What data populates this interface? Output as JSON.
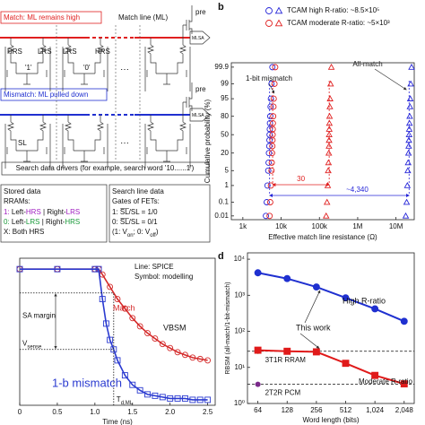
{
  "diagram": {
    "top_status": "Match: ML remains high",
    "ml_label": "Match line (ML)",
    "pre": [
      "pre",
      "pre"
    ],
    "mlsa": [
      "MLSA",
      "MLSA"
    ],
    "cells": [
      {
        "left": "HRS",
        "right": "LRS",
        "bit": "'1'"
      },
      {
        "left": "LRS",
        "right": "HRS",
        "bit": "'0'"
      }
    ],
    "bottom_status": "Mismatch: ML pulled down",
    "sl": "SL",
    "drivers": "Search data drivers (for example, search word '10......1')",
    "legend_left": {
      "title": "Stored data",
      "subtitle": "RRAMs:",
      "lines": [
        {
          "parts": [
            {
              "text": "1:",
              "color": "#a020c0"
            },
            {
              "text": " Left-"
            },
            {
              "text": "HRS",
              "color": "#a020c0"
            },
            {
              "text": " | Right-"
            },
            {
              "text": "LRS",
              "color": "#a020c0"
            }
          ]
        },
        {
          "parts": [
            {
              "text": "0:",
              "color": "#1a9a3a"
            },
            {
              "text": " Left-"
            },
            {
              "text": "LRS",
              "color": "#1a9a3a"
            },
            {
              "text": " | Right-"
            },
            {
              "text": "HRS",
              "color": "#1a9a3a"
            }
          ]
        },
        {
          "parts": [
            {
              "text": "X: Both HRS"
            }
          ]
        }
      ]
    },
    "legend_right": {
      "title": "Search line data",
      "subtitle": "Gates of FETs:",
      "lines": [
        {
          "parts": [
            {
              "text": "1: S̅L̅/SL = 1/0"
            }
          ]
        },
        {
          "parts": [
            {
              "text": "0: S̅L̅/SL = 0/1"
            }
          ]
        },
        {
          "parts": [
            {
              "text": "(1: V"
            },
            {
              "text": "on",
              "sub": true
            },
            {
              "text": "; 0: V"
            },
            {
              "text": "off",
              "sub": true
            },
            {
              "text": ")"
            }
          ]
        }
      ]
    }
  },
  "chart_data": [
    {
      "panel": "b",
      "type": "scatter",
      "xlabel": "Effective match line resistance (Ω)",
      "ylabel": "Cumulative probability (%)",
      "xscale": "log",
      "yscale": "probability",
      "xlim": [
        500,
        30000000
      ],
      "ylim": [
        0.005,
        99.95
      ],
      "xticks": [
        {
          "value": 1000,
          "label": "1k"
        },
        {
          "value": 10000,
          "label": "10k"
        },
        {
          "value": 100000,
          "label": "100k"
        },
        {
          "value": 1000000,
          "label": "1M"
        },
        {
          "value": 10000000,
          "label": "10M"
        }
      ],
      "yticks": [
        0.01,
        0.1,
        1,
        5,
        20,
        50,
        80,
        95,
        99,
        99.9
      ],
      "legend": "top",
      "group_labels": [
        "1-bit mismatch",
        "All-match"
      ],
      "series": [
        {
          "name": "TCAM high R-ratio: ~8.5×10⁵",
          "color": "#2626d8",
          "ratio_label": "~4,340",
          "groups": [
            {
              "marker": "circle",
              "x": [
                4000,
                4200,
                4400,
                4600,
                4700,
                4800,
                4900,
                4950,
                5000,
                5050,
                5100,
                5200,
                5300,
                5400,
                5600,
                5900
              ],
              "y": [
                0.01,
                0.1,
                1,
                5,
                10,
                20,
                30,
                40,
                50,
                60,
                70,
                80,
                90,
                95,
                99,
                99.9
              ]
            },
            {
              "marker": "triangle",
              "x": [
                18000000,
                19000000,
                19800000,
                20400000,
                20800000,
                21200000,
                21500000,
                21700000,
                22000000,
                22200000,
                22500000,
                22800000,
                23200000,
                23600000,
                24300000,
                25500000
              ],
              "y": [
                0.01,
                0.1,
                1,
                5,
                10,
                20,
                30,
                40,
                50,
                60,
                70,
                80,
                90,
                95,
                99,
                99.9
              ]
            }
          ]
        },
        {
          "name": "TCAM moderate R-ratio: ~5×10³",
          "color": "#e02020",
          "ratio_label": "30",
          "groups": [
            {
              "marker": "circle",
              "x": [
                5000,
                5200,
                5400,
                5600,
                5700,
                5800,
                5900,
                5950,
                6000,
                6050,
                6100,
                6200,
                6300,
                6400,
                6700,
                7000
              ],
              "y": [
                0.01,
                0.1,
                1,
                5,
                10,
                20,
                30,
                40,
                50,
                60,
                70,
                80,
                90,
                95,
                99,
                99.9
              ]
            },
            {
              "marker": "triangle",
              "x": [
                150000,
                158000,
                165000,
                170000,
                173000,
                176000,
                178000,
                179000,
                180000,
                181000,
                182000,
                184000,
                187000,
                190000,
                196000,
                205000
              ],
              "y": [
                0.01,
                0.1,
                1,
                5,
                10,
                20,
                30,
                40,
                50,
                60,
                70,
                80,
                90,
                95,
                99,
                99.9
              ]
            }
          ]
        }
      ]
    },
    {
      "panel": "c",
      "type": "line",
      "xlabel": "Time (ns)",
      "xlim": [
        0,
        2.6
      ],
      "ylim": [
        0,
        1.08
      ],
      "xticks": [
        0,
        0.5,
        {
          "value": 1,
          "label": "1.0"
        },
        1.5,
        {
          "value": 2,
          "label": "2.0"
        },
        2.5
      ],
      "notes": [
        "Line: SPICE",
        "Symbol: modelling"
      ],
      "sa_margin": "SA margin",
      "vbsm": "VBSM",
      "v_sense": {
        "parts": [
          {
            "text": "V"
          },
          {
            "text": "sense",
            "sub": true
          }
        ],
        "value": 0.41
      },
      "t_d": {
        "parts": [
          {
            "text": "T"
          },
          {
            "text": "d,ML",
            "sub": true
          }
        ],
        "value": 1.25
      },
      "series": [
        {
          "name": "Match",
          "color": "#d42a2a",
          "marker": "circle",
          "x": [
            0,
            0.5,
            1.0,
            1.05,
            1.1,
            1.2,
            1.3,
            1.4,
            1.5,
            1.6,
            1.7,
            1.8,
            1.9,
            2.0,
            2.1,
            2.2,
            2.3,
            2.4,
            2.5
          ],
          "values": [
            1,
            1,
            1,
            1,
            0.96,
            0.87,
            0.78,
            0.71,
            0.64,
            0.58,
            0.53,
            0.49,
            0.45,
            0.42,
            0.39,
            0.37,
            0.35,
            0.34,
            0.33
          ]
        },
        {
          "name": "1-b mismatch",
          "color": "#2a3ad0",
          "marker": "square",
          "x": [
            0,
            0.5,
            1.0,
            1.05,
            1.1,
            1.15,
            1.2,
            1.25,
            1.3,
            1.4,
            1.5,
            1.6,
            1.7,
            1.8,
            1.9,
            2.0,
            2.1,
            2.2,
            2.3,
            2.4,
            2.5
          ],
          "values": [
            1,
            1,
            1,
            1,
            0.78,
            0.6,
            0.48,
            0.41,
            0.33,
            0.22,
            0.15,
            0.11,
            0.08,
            0.07,
            0.06,
            0.05,
            0.05,
            0.05,
            0.04,
            0.04,
            0.04
          ]
        }
      ]
    },
    {
      "panel": "d",
      "type": "line",
      "xlabel": "Word length (bits)",
      "ylabel": "RBSM (all-match/1-bit-mismatch)",
      "xscale": "log2",
      "yscale": "log",
      "xlim": [
        50,
        2600
      ],
      "ylim": [
        1,
        15000
      ],
      "xticks": [
        64,
        128,
        256,
        512,
        {
          "value": 1024,
          "label": "1,024"
        },
        {
          "value": 2048,
          "label": "2,048"
        }
      ],
      "yticks": [
        {
          "value": 1,
          "label": "10⁰"
        },
        {
          "value": 10,
          "label": "10¹"
        },
        {
          "value": 100,
          "label": "10²"
        },
        {
          "value": 1000,
          "label": "10³"
        },
        {
          "value": 10000,
          "label": "10⁴"
        }
      ],
      "annotation": "This work",
      "series": [
        {
          "name": "High R-ratio",
          "color": "#1f30d0",
          "marker": "circle",
          "x": [
            64,
            128,
            256,
            512,
            1024,
            2048
          ],
          "values": [
            4200,
            2900,
            1700,
            850,
            420,
            190
          ]
        },
        {
          "name": "Moderate R-ratio",
          "color": "#e01a1a",
          "marker": "square",
          "x": [
            64,
            128,
            256,
            512,
            1024,
            2048
          ],
          "values": [
            30,
            28,
            27,
            13,
            6,
            3.5
          ]
        }
      ],
      "references": [
        {
          "name": "3T1R RRAM",
          "color": "#2a9a2a",
          "x": 64,
          "value": 28
        },
        {
          "name": "2T2R PCM",
          "color": "#7a2a8a",
          "x": 64,
          "value": 3.4
        }
      ]
    }
  ]
}
